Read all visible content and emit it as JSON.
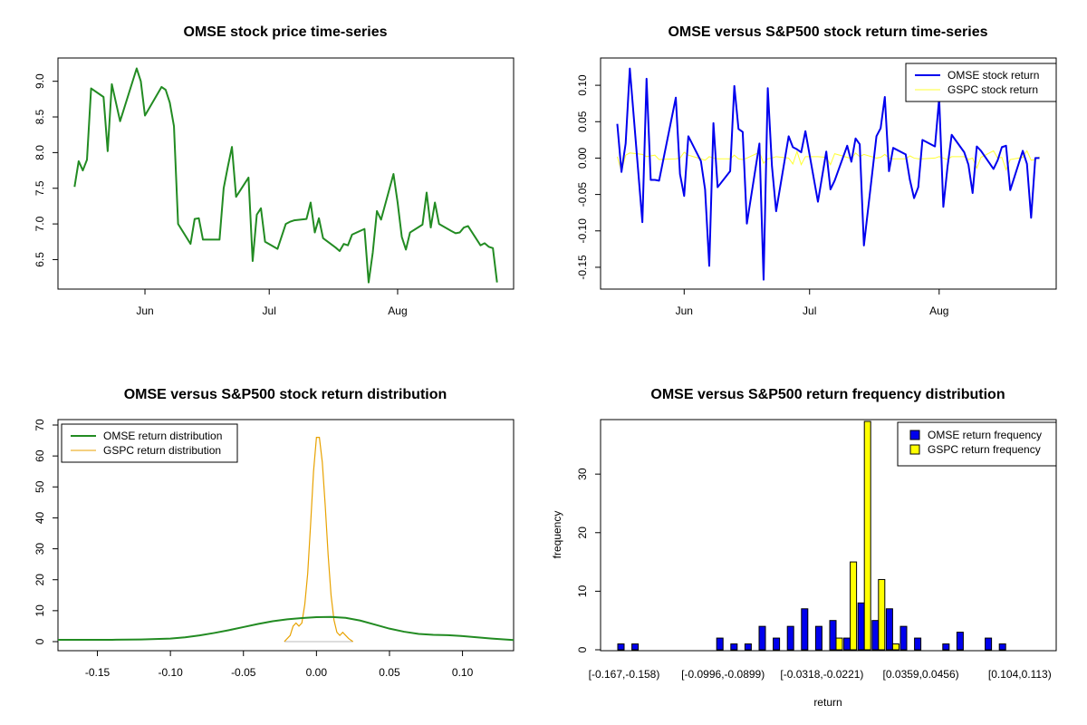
{
  "chart_data": [
    {
      "type": "line",
      "title": "OMSE stock price time-series",
      "xlabel": "",
      "ylabel": "",
      "x_ticks": [
        "Jun",
        "Jul",
        "Aug"
      ],
      "y_ticks": [
        "6.5",
        "7.0",
        "7.5",
        "8.0",
        "8.5",
        "9.0"
      ],
      "ylim": [
        6.15,
        9.25
      ],
      "grid": false,
      "series": [
        {
          "color": "#228B22",
          "x": [
            "2017-05-15",
            "2017-05-16",
            "2017-05-17",
            "2017-05-18",
            "2017-05-19",
            "2017-05-22",
            "2017-05-23",
            "2017-05-24",
            "2017-05-25",
            "2017-05-26",
            "2017-05-30",
            "2017-05-31",
            "2017-06-01",
            "2017-06-02",
            "2017-06-05",
            "2017-06-06",
            "2017-06-07",
            "2017-06-08",
            "2017-06-09",
            "2017-06-12",
            "2017-06-13",
            "2017-06-14",
            "2017-06-15",
            "2017-06-16",
            "2017-06-19",
            "2017-06-20",
            "2017-06-21",
            "2017-06-22",
            "2017-06-23",
            "2017-06-26",
            "2017-06-27",
            "2017-06-28",
            "2017-06-29",
            "2017-06-30",
            "2017-07-03",
            "2017-07-05",
            "2017-07-06",
            "2017-07-07",
            "2017-07-10",
            "2017-07-11",
            "2017-07-12",
            "2017-07-13",
            "2017-07-14",
            "2017-07-17",
            "2017-07-18",
            "2017-07-19",
            "2017-07-20",
            "2017-07-21",
            "2017-07-24",
            "2017-07-25",
            "2017-07-26",
            "2017-07-27",
            "2017-07-28",
            "2017-07-31",
            "2017-08-01",
            "2017-08-02",
            "2017-08-03",
            "2017-08-04",
            "2017-08-07",
            "2017-08-08",
            "2017-08-09",
            "2017-08-10",
            "2017-08-11",
            "2017-08-14",
            "2017-08-15",
            "2017-08-16",
            "2017-08-17",
            "2017-08-18",
            "2017-08-21",
            "2017-08-22",
            "2017-08-23",
            "2017-08-24",
            "2017-08-25"
          ],
          "values": [
            7.52,
            7.88,
            7.75,
            7.9,
            8.9,
            8.78,
            8.02,
            8.96,
            8.7,
            8.44,
            9.18,
            9.0,
            8.52,
            8.62,
            8.92,
            8.88,
            8.7,
            8.37,
            7.0,
            6.72,
            7.07,
            7.08,
            6.78,
            6.78,
            6.78,
            7.5,
            7.8,
            8.08,
            7.38,
            7.65,
            6.48,
            7.13,
            7.22,
            6.75,
            6.65,
            7.0,
            7.03,
            7.05,
            7.07,
            7.3,
            6.88,
            7.08,
            6.8,
            6.67,
            6.62,
            6.72,
            6.7,
            6.85,
            6.93,
            6.18,
            6.6,
            7.18,
            7.06,
            7.7,
            7.3,
            6.82,
            6.64,
            6.88,
            6.99,
            7.44,
            6.95,
            7.3,
            7.0,
            6.9,
            6.87,
            6.88,
            6.95,
            6.97,
            6.7,
            6.73,
            6.68,
            6.66,
            6.18
          ]
        }
      ]
    },
    {
      "type": "line",
      "title": "OMSE versus S&P500 stock return time-series",
      "xlabel": "",
      "ylabel": "",
      "x_ticks": [
        "Jun",
        "Jul",
        "Aug"
      ],
      "y_ticks": [
        "-0.15",
        "-0.10",
        "-0.05",
        "0.00",
        "0.05",
        "0.10"
      ],
      "ylim": [
        -0.17,
        0.13
      ],
      "grid": false,
      "legend_position": "top-right",
      "series": [
        {
          "name": "OMSE stock return",
          "color": "#0000EE",
          "x": [
            "2017-05-16",
            "2017-05-17",
            "2017-05-18",
            "2017-05-19",
            "2017-05-22",
            "2017-05-23",
            "2017-05-24",
            "2017-05-25",
            "2017-05-26",
            "2017-05-30",
            "2017-05-31",
            "2017-06-01",
            "2017-06-02",
            "2017-06-05",
            "2017-06-06",
            "2017-06-07",
            "2017-06-08",
            "2017-06-09",
            "2017-06-12",
            "2017-06-13",
            "2017-06-14",
            "2017-06-15",
            "2017-06-16",
            "2017-06-19",
            "2017-06-20",
            "2017-06-21",
            "2017-06-22",
            "2017-06-23",
            "2017-06-26",
            "2017-06-27",
            "2017-06-28",
            "2017-06-29",
            "2017-06-30",
            "2017-07-03",
            "2017-07-05",
            "2017-07-06",
            "2017-07-07",
            "2017-07-10",
            "2017-07-11",
            "2017-07-12",
            "2017-07-13",
            "2017-07-14",
            "2017-07-17",
            "2017-07-18",
            "2017-07-19",
            "2017-07-20",
            "2017-07-21",
            "2017-07-24",
            "2017-07-25",
            "2017-07-26",
            "2017-07-27",
            "2017-07-28",
            "2017-07-31",
            "2017-08-01",
            "2017-08-02",
            "2017-08-03",
            "2017-08-04",
            "2017-08-07",
            "2017-08-08",
            "2017-08-09",
            "2017-08-10",
            "2017-08-11",
            "2017-08-14",
            "2017-08-15",
            "2017-08-16",
            "2017-08-17",
            "2017-08-18",
            "2017-08-21",
            "2017-08-22",
            "2017-08-23",
            "2017-08-24",
            "2017-08-25"
          ],
          "values": [
            0.047,
            -0.019,
            0.02,
            0.123,
            -0.088,
            0.109,
            -0.03,
            -0.03,
            -0.031,
            0.083,
            -0.022,
            -0.052,
            0.03,
            -0.004,
            -0.043,
            -0.148,
            0.048,
            -0.04,
            -0.018,
            0.099,
            0.04,
            0.036,
            -0.09,
            0.02,
            -0.167,
            0.096,
            -0.011,
            -0.073,
            0.03,
            0.015,
            0.012,
            0.008,
            0.037,
            -0.06,
            0.009,
            -0.043,
            -0.031,
            0.017,
            -0.005,
            0.027,
            0.019,
            -0.12,
            0.03,
            0.041,
            0.084,
            -0.018,
            0.014,
            0.005,
            -0.03,
            -0.055,
            -0.04,
            0.025,
            0.016,
            0.082,
            -0.067,
            -0.012,
            0.032,
            0.008,
            -0.009,
            -0.048,
            0.016,
            0.01,
            -0.015,
            -0.003,
            0.015,
            0.017,
            -0.044,
            0.01,
            -0.008,
            -0.082,
            0.0,
            0.0
          ]
        },
        {
          "name": "GSPC stock return",
          "color": "#FFFF33",
          "x": [
            "2017-05-16",
            "2017-05-17",
            "2017-05-18",
            "2017-05-19",
            "2017-05-22",
            "2017-05-23",
            "2017-05-24",
            "2017-05-25",
            "2017-05-26",
            "2017-05-30",
            "2017-05-31",
            "2017-06-01",
            "2017-06-02",
            "2017-06-05",
            "2017-06-06",
            "2017-06-07",
            "2017-06-08",
            "2017-06-09",
            "2017-06-12",
            "2017-06-13",
            "2017-06-14",
            "2017-06-15",
            "2017-06-16",
            "2017-06-19",
            "2017-06-20",
            "2017-06-21",
            "2017-06-22",
            "2017-06-23",
            "2017-06-26",
            "2017-06-27",
            "2017-06-28",
            "2017-06-29",
            "2017-06-30",
            "2017-07-03",
            "2017-07-05",
            "2017-07-06",
            "2017-07-07",
            "2017-07-10",
            "2017-07-11",
            "2017-07-12",
            "2017-07-13",
            "2017-07-14",
            "2017-07-17",
            "2017-07-18",
            "2017-07-19",
            "2017-07-20",
            "2017-07-21",
            "2017-07-24",
            "2017-07-25",
            "2017-07-26",
            "2017-07-27",
            "2017-07-28",
            "2017-07-31",
            "2017-08-01",
            "2017-08-02",
            "2017-08-03",
            "2017-08-04",
            "2017-08-07",
            "2017-08-08",
            "2017-08-09",
            "2017-08-10",
            "2017-08-11",
            "2017-08-14",
            "2017-08-15",
            "2017-08-16",
            "2017-08-17",
            "2017-08-18",
            "2017-08-21",
            "2017-08-22",
            "2017-08-23",
            "2017-08-24",
            "2017-08-25"
          ],
          "values": [
            0.002,
            -0.018,
            0.004,
            0.007,
            0.005,
            0.002,
            0.003,
            0.004,
            -0.002,
            -0.001,
            0.0,
            0.008,
            0.004,
            -0.001,
            -0.003,
            0.002,
            0.0,
            -0.001,
            -0.001,
            0.004,
            -0.001,
            -0.002,
            0.0,
            0.008,
            -0.007,
            -0.001,
            0.0,
            0.002,
            0.0,
            -0.008,
            0.009,
            -0.009,
            0.002,
            0.002,
            0.001,
            -0.009,
            0.006,
            0.001,
            -0.001,
            0.007,
            0.002,
            0.005,
            0.0,
            0.001,
            0.005,
            0.0,
            -0.001,
            -0.001,
            0.003,
            0.0,
            -0.001,
            -0.001,
            0.0,
            0.002,
            0.0,
            -0.002,
            0.002,
            0.002,
            -0.002,
            0.0,
            -0.014,
            0.001,
            0.01,
            0.0,
            0.001,
            -0.016,
            -0.002,
            0.001,
            0.01,
            -0.003,
            -0.002,
            0.002
          ]
        }
      ]
    },
    {
      "type": "line",
      "title": "OMSE versus S&P500 stock return distribution",
      "xlabel": "",
      "ylabel": "",
      "x_ticks": [
        "-0.15",
        "-0.10",
        "-0.05",
        "0.00",
        "0.05",
        "0.10"
      ],
      "y_ticks": [
        "0",
        "10",
        "20",
        "30",
        "40",
        "50",
        "60",
        "70"
      ],
      "xlim": [
        -0.177,
        0.135
      ],
      "ylim": [
        0,
        70
      ],
      "grid": false,
      "legend_position": "top-left",
      "series": [
        {
          "name": "OMSE return distribution",
          "color": "#228B22",
          "x": [
            -0.177,
            -0.16,
            -0.14,
            -0.12,
            -0.1,
            -0.09,
            -0.08,
            -0.07,
            -0.06,
            -0.05,
            -0.04,
            -0.03,
            -0.02,
            -0.01,
            0.0,
            0.01,
            0.02,
            0.03,
            0.04,
            0.05,
            0.06,
            0.07,
            0.08,
            0.09,
            0.1,
            0.11,
            0.12,
            0.135
          ],
          "values": [
            0.6,
            0.6,
            0.6,
            0.7,
            1.0,
            1.4,
            2.0,
            2.8,
            3.7,
            4.7,
            5.7,
            6.6,
            7.2,
            7.6,
            7.9,
            8.0,
            7.7,
            6.8,
            5.5,
            4.2,
            3.2,
            2.5,
            2.2,
            2.1,
            1.8,
            1.4,
            1.0,
            0.5
          ]
        },
        {
          "name": "GSPC return distribution",
          "color": "#E8A200",
          "x": [
            -0.022,
            -0.018,
            -0.016,
            -0.014,
            -0.012,
            -0.01,
            -0.008,
            -0.006,
            -0.004,
            -0.002,
            0.0,
            0.002,
            0.004,
            0.006,
            0.008,
            0.01,
            0.012,
            0.014,
            0.016,
            0.018,
            0.02,
            0.022,
            0.025
          ],
          "values": [
            0,
            2,
            5,
            6,
            5,
            6,
            12,
            22,
            38,
            55,
            66,
            66,
            58,
            44,
            28,
            15,
            7,
            3,
            2,
            3,
            2,
            1,
            0
          ]
        }
      ]
    },
    {
      "type": "bar",
      "title": "OMSE versus S&P500 return frequency distribution",
      "xlabel": "return",
      "ylabel": "frequency",
      "y_ticks": [
        "0",
        "10",
        "20",
        "30"
      ],
      "ylim": [
        0,
        39
      ],
      "grid": false,
      "legend_position": "top-right",
      "x_tick_labels": [
        "[-0.167,-0.158)",
        "[-0.0996,-0.0899)",
        "[-0.0318,-0.0221)",
        "[0.0359,0.0456)",
        "[0.104,0.113)"
      ],
      "categories": [
        "[-0.167,-0.158)",
        "[-0.158,-0.148)",
        "[-0.148,-0.138)",
        "[-0.138,-0.129)",
        "[-0.129,-0.119)",
        "[-0.119,-0.109)",
        "[-0.109,-0.0996)",
        "[-0.0996,-0.0899)",
        "[-0.0899,-0.0802)",
        "[-0.0802,-0.0706)",
        "[-0.0706,-0.0609)",
        "[-0.0609,-0.0512)",
        "[-0.0512,-0.0415)",
        "[-0.0415,-0.0318)",
        "[-0.0318,-0.0221)",
        "[-0.0221,-0.0125)",
        "[-0.0125,-0.0028)",
        "[-0.0028,0.00691)",
        "[0.00691,0.0166)",
        "[0.0166,0.0263)",
        "[0.0263,0.0359)",
        "[0.0359,0.0456)",
        "[0.0456,0.0553)",
        "[0.0553,0.065)",
        "[0.065,0.0747)",
        "[0.0747,0.0844)",
        "[0.0844,0.094)",
        "[0.094,0.104)",
        "[0.104,0.113)",
        "[0.113,0.123)"
      ],
      "series": [
        {
          "name": "OMSE return frequency",
          "color": "#0000EE",
          "values": [
            1,
            1,
            0,
            0,
            0,
            0,
            0,
            2,
            1,
            1,
            4,
            2,
            4,
            7,
            4,
            5,
            2,
            8,
            5,
            7,
            4,
            2,
            0,
            1,
            3,
            0,
            2,
            1,
            0,
            0
          ]
        },
        {
          "name": "GSPC return frequency",
          "color": "#FFFF00",
          "values": [
            0,
            0,
            0,
            0,
            0,
            0,
            0,
            0,
            0,
            0,
            0,
            0,
            0,
            0,
            0,
            2,
            15,
            39,
            12,
            1,
            0,
            0,
            0,
            0,
            0,
            0,
            0,
            0,
            0,
            0
          ]
        }
      ]
    }
  ]
}
